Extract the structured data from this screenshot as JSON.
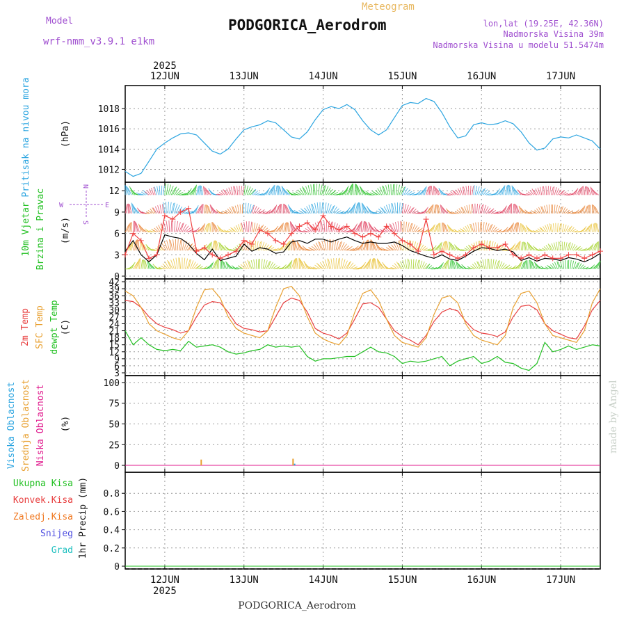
{
  "header": {
    "model_label": "Model",
    "model_name": "wrf-nmm_v3.9.1 e1km",
    "product": "Meteogram",
    "station": "PODGORICA_Aerodrom",
    "lonlat": "lon,lat (19.25E, 42.36N)",
    "elevation": "Nadmorska Visina 39m",
    "model_elevation": "Nadmorska Visina u modelu 51.5474m"
  },
  "footer": {
    "station": "PODGORICA_Aerodrom",
    "watermark": "made by Angel"
  },
  "colors": {
    "pressure": "#2aa4e0",
    "t2m": "#e84040",
    "sfc": "#e8a030",
    "dewpt": "#22c022",
    "high_cloud": "#2aa4e0",
    "mid_cloud": "#e8a030",
    "low_cloud": "#e0188c",
    "total_precip": "#22c022",
    "conv_precip": "#e84040",
    "grid_precip": "#f07820",
    "snow": "#5050e0",
    "graupel": "#20c0c0",
    "wind_mean": "#000000",
    "gust": "#f04040"
  },
  "chart_data": {
    "type": "line",
    "x_unit": "days, June 2025",
    "year_label": "2025",
    "x_range": [
      11.5,
      17.5
    ],
    "days": [
      {
        "label": "12JUN",
        "x": 12
      },
      {
        "label": "13JUN",
        "x": 13
      },
      {
        "label": "14JUN",
        "x": 14
      },
      {
        "label": "15JUN",
        "x": 15
      },
      {
        "label": "16JUN",
        "x": 16
      },
      {
        "label": "17JUN",
        "x": 17
      }
    ],
    "panels": [
      {
        "id": "pressure",
        "ylabel": "Pritisak na nivou mora",
        "unit": "(hPa)",
        "ylim": [
          1011,
          1020
        ],
        "yticks": [
          1012,
          1014,
          1016,
          1018
        ],
        "series": [
          {
            "key": "pressure",
            "x": [
              11.5,
              11.6,
              11.7,
              11.8,
              11.9,
              12.0,
              12.1,
              12.2,
              12.3,
              12.4,
              12.5,
              12.6,
              12.7,
              12.8,
              12.9,
              13.0,
              13.1,
              13.2,
              13.3,
              13.4,
              13.5,
              13.6,
              13.7,
              13.8,
              13.9,
              14.0,
              14.1,
              14.2,
              14.3,
              14.4,
              14.5,
              14.6,
              14.7,
              14.8,
              14.9,
              15.0,
              15.1,
              15.2,
              15.3,
              15.4,
              15.5,
              15.6,
              15.7,
              15.8,
              15.9,
              16.0,
              16.1,
              16.2,
              16.3,
              16.4,
              16.5,
              16.6,
              16.7,
              16.8,
              16.9,
              17.0,
              17.1,
              17.2,
              17.3,
              17.4,
              17.5
            ],
            "y": [
              1011.8,
              1011.3,
              1011.6,
              1012.8,
              1014.0,
              1014.6,
              1015.1,
              1015.5,
              1015.6,
              1015.4,
              1014.6,
              1013.8,
              1013.5,
              1014.0,
              1015.0,
              1015.9,
              1016.2,
              1016.4,
              1016.8,
              1016.6,
              1015.9,
              1015.2,
              1015.0,
              1015.7,
              1016.9,
              1017.9,
              1018.2,
              1018.0,
              1018.4,
              1017.9,
              1016.8,
              1015.9,
              1015.4,
              1015.9,
              1017.1,
              1018.3,
              1018.6,
              1018.5,
              1019.0,
              1018.7,
              1017.6,
              1016.2,
              1015.1,
              1015.3,
              1016.4,
              1016.6,
              1016.4,
              1016.5,
              1016.8,
              1016.5,
              1015.7,
              1014.6,
              1013.9,
              1014.1,
              1015.0,
              1015.2,
              1015.1,
              1015.4,
              1015.1,
              1014.8,
              1014.0
            ]
          }
        ]
      },
      {
        "id": "wind",
        "ylabel": "10m Vjetar Brzina i Pravac",
        "unit": "(m/s)",
        "direction_key": [
          "N",
          "E",
          "W",
          "S"
        ],
        "ylim": [
          0,
          12.8
        ],
        "yticks": [
          0,
          3,
          6,
          9,
          12
        ],
        "series": [
          {
            "key": "wind_mean",
            "x": [
              11.5,
              11.6,
              11.7,
              11.8,
              11.9,
              12.0,
              12.1,
              12.2,
              12.3,
              12.4,
              12.5,
              12.6,
              12.7,
              12.8,
              12.9,
              13.0,
              13.1,
              13.2,
              13.3,
              13.4,
              13.5,
              13.6,
              13.7,
              13.8,
              13.9,
              14.0,
              14.1,
              14.2,
              14.3,
              14.4,
              14.5,
              14.6,
              14.7,
              14.8,
              14.9,
              15.0,
              15.1,
              15.2,
              15.3,
              15.4,
              15.5,
              15.6,
              15.7,
              15.8,
              15.9,
              16.0,
              16.1,
              16.2,
              16.3,
              16.4,
              16.5,
              16.6,
              16.7,
              16.8,
              16.9,
              17.0,
              17.1,
              17.2,
              17.3,
              17.4,
              17.5
            ],
            "y": [
              3.5,
              5.0,
              3.0,
              2.0,
              3.0,
              5.8,
              5.5,
              5.3,
              4.5,
              3.2,
              2.3,
              3.8,
              2.2,
              2.5,
              2.8,
              4.5,
              3.5,
              4.0,
              3.8,
              3.2,
              3.4,
              4.8,
              5.0,
              4.6,
              5.2,
              5.2,
              4.8,
              5.2,
              5.5,
              5.0,
              4.6,
              4.8,
              4.6,
              4.6,
              4.8,
              4.3,
              3.6,
              3.2,
              2.8,
              2.5,
              3.0,
              2.4,
              2.2,
              2.8,
              3.5,
              4.0,
              3.9,
              3.6,
              3.8,
              3.4,
              2.2,
              2.6,
              2.1,
              2.5,
              2.4,
              2.2,
              2.6,
              2.4,
              2.0,
              2.5,
              3.2
            ]
          },
          {
            "key": "gust",
            "x": [
              11.5,
              11.6,
              11.7,
              11.8,
              11.9,
              12.0,
              12.1,
              12.2,
              12.3,
              12.4,
              12.5,
              12.6,
              12.7,
              12.8,
              12.9,
              13.0,
              13.1,
              13.2,
              13.3,
              13.4,
              13.5,
              13.6,
              13.7,
              13.8,
              13.9,
              14.0,
              14.1,
              14.2,
              14.3,
              14.4,
              14.5,
              14.6,
              14.7,
              14.8,
              14.9,
              15.0,
              15.1,
              15.2,
              15.3,
              15.4,
              15.5,
              15.6,
              15.7,
              15.8,
              15.9,
              16.0,
              16.1,
              16.2,
              16.3,
              16.4,
              16.5,
              16.6,
              16.7,
              16.8,
              16.9,
              17.0,
              17.1,
              17.2,
              17.3,
              17.4,
              17.5
            ],
            "y": [
              3.0,
              6.0,
              5.0,
              2.5,
              3.0,
              8.5,
              8.0,
              9.0,
              9.5,
              3.5,
              4.0,
              3.0,
              2.5,
              3.0,
              3.5,
              5.0,
              4.5,
              6.5,
              6.0,
              5.0,
              4.5,
              6.0,
              7.0,
              7.5,
              6.5,
              8.5,
              7.0,
              6.5,
              7.0,
              6.0,
              5.5,
              6.0,
              5.5,
              7.0,
              6.0,
              5.0,
              4.5,
              3.5,
              8.0,
              3.0,
              3.5,
              3.0,
              2.5,
              3.0,
              4.0,
              4.5,
              4.0,
              4.0,
              4.5,
              3.0,
              2.5,
              3.0,
              2.5,
              3.0,
              2.5,
              2.5,
              3.0,
              3.0,
              2.5,
              3.0,
              3.5
            ]
          }
        ]
      },
      {
        "id": "temperature",
        "ylabels": [
          "2m Temp",
          "SFC Temp",
          "dewpt Temp"
        ],
        "unit": "(C)",
        "ylim": [
          3,
          42
        ],
        "yticks": [
          3,
          6,
          9,
          12,
          15,
          18,
          21,
          24,
          27,
          30,
          33,
          36,
          39,
          42
        ],
        "series": [
          {
            "key": "t2m",
            "x": [
              11.5,
              11.6,
              11.7,
              11.8,
              11.9,
              12.0,
              12.1,
              12.2,
              12.3,
              12.4,
              12.5,
              12.6,
              12.7,
              12.8,
              12.9,
              13.0,
              13.1,
              13.2,
              13.3,
              13.4,
              13.5,
              13.6,
              13.7,
              13.8,
              13.9,
              14.0,
              14.1,
              14.2,
              14.3,
              14.4,
              14.5,
              14.6,
              14.7,
              14.8,
              14.9,
              15.0,
              15.1,
              15.2,
              15.3,
              15.4,
              15.5,
              15.6,
              15.7,
              15.8,
              15.9,
              16.0,
              16.1,
              16.2,
              16.3,
              16.4,
              16.5,
              16.6,
              16.7,
              16.8,
              16.9,
              17.0,
              17.1,
              17.2,
              17.3,
              17.4,
              17.5
            ],
            "y": [
              34,
              33.5,
              31,
              27,
              24,
              22.5,
              21.5,
              20,
              21,
              27,
              32,
              33.5,
              33,
              29,
              24,
              22,
              21.5,
              20.5,
              21,
              27,
              33,
              35,
              34,
              29,
              22,
              20,
              19,
              17.5,
              20,
              26,
              32.5,
              33,
              31,
              26,
              21,
              18.5,
              17,
              15,
              19,
              25,
              29,
              30.5,
              29.5,
              25,
              21.5,
              20,
              19.5,
              18.5,
              20.5,
              27,
              31.5,
              32,
              30,
              24,
              21,
              19.5,
              18,
              17.5,
              23,
              30,
              34
            ]
          },
          {
            "key": "sfc",
            "x": [
              11.5,
              11.6,
              11.7,
              11.8,
              11.9,
              12.0,
              12.1,
              12.2,
              12.3,
              12.4,
              12.5,
              12.6,
              12.7,
              12.8,
              12.9,
              13.0,
              13.1,
              13.2,
              13.3,
              13.4,
              13.5,
              13.6,
              13.7,
              13.8,
              13.9,
              14.0,
              14.1,
              14.2,
              14.3,
              14.4,
              14.5,
              14.6,
              14.7,
              14.8,
              14.9,
              15.0,
              15.1,
              15.2,
              15.3,
              15.4,
              15.5,
              15.6,
              15.7,
              15.8,
              15.9,
              16.0,
              16.1,
              16.2,
              16.3,
              16.4,
              16.5,
              16.6,
              16.7,
              16.8,
              16.9,
              17.0,
              17.1,
              17.2,
              17.3,
              17.4,
              17.5
            ],
            "y": [
              38,
              36,
              31,
              24,
              21,
              19.5,
              18,
              17,
              21,
              31,
              38.5,
              39,
              35,
              27,
              22,
              20,
              19,
              18,
              21,
              31,
              39,
              40,
              36,
              27,
              20,
              17.5,
              16,
              15,
              19,
              29,
              37,
              38.5,
              34,
              26,
              19,
              16,
              15,
              14,
              18,
              28,
              35,
              36,
              33,
              24,
              19,
              17,
              16,
              15,
              19,
              31,
              37,
              38,
              33,
              24,
              19,
              18,
              17,
              16,
              21,
              33,
              39
            ]
          },
          {
            "key": "dewpt",
            "x": [
              11.5,
              11.6,
              11.7,
              11.8,
              11.9,
              12.0,
              12.1,
              12.2,
              12.3,
              12.4,
              12.5,
              12.6,
              12.7,
              12.8,
              12.9,
              13.0,
              13.1,
              13.2,
              13.3,
              13.4,
              13.5,
              13.6,
              13.7,
              13.8,
              13.9,
              14.0,
              14.1,
              14.2,
              14.3,
              14.4,
              14.5,
              14.6,
              14.7,
              14.8,
              14.9,
              15.0,
              15.1,
              15.2,
              15.3,
              15.4,
              15.5,
              15.6,
              15.7,
              15.8,
              15.9,
              16.0,
              16.1,
              16.2,
              16.3,
              16.4,
              16.5,
              16.6,
              16.7,
              16.8,
              16.9,
              17.0,
              17.1,
              17.2,
              17.3,
              17.4,
              17.5
            ],
            "y": [
              21,
              15,
              18,
              15,
              13,
              12.5,
              13,
              12.5,
              16.5,
              14,
              14.5,
              15,
              14,
              12,
              11,
              11.5,
              12.5,
              13,
              15,
              14,
              14.5,
              14,
              14.5,
              10,
              8,
              9,
              9,
              9.5,
              10,
              10,
              12,
              14,
              12,
              11.5,
              10,
              7,
              8,
              7.5,
              8,
              9,
              10,
              6,
              8,
              9,
              10,
              7,
              8,
              10,
              7.5,
              7,
              5,
              4,
              7,
              16,
              12,
              13,
              14.5,
              13,
              14,
              15,
              14.5
            ]
          }
        ]
      },
      {
        "id": "clouds",
        "ylabels": [
          "Visoka Oblacnost",
          "Srednja Oblacnost",
          "Niska Oblacnost"
        ],
        "unit": "(%)",
        "ylim": [
          -5,
          105
        ],
        "yticks": [
          0,
          25,
          50,
          75,
          100
        ],
        "series": [
          {
            "key": "high_cloud",
            "x": [
              11.5,
              17.5
            ],
            "y": [
              0,
              0
            ]
          },
          {
            "key": "mid_cloud",
            "x": [
              11.5,
              17.5
            ],
            "y": [
              0,
              0
            ]
          },
          {
            "key": "low_cloud",
            "x": [
              11.5,
              17.5
            ],
            "y": [
              0,
              0
            ]
          }
        ],
        "bars": [
          {
            "key": "mid_cloud",
            "x": 12.46,
            "y": 7
          },
          {
            "key": "mid_cloud",
            "x": 13.62,
            "y": 8
          },
          {
            "key": "high_cloud",
            "x": 13.64,
            "y": 2
          }
        ]
      },
      {
        "id": "precip",
        "legend": [
          {
            "key": "total_precip",
            "label": "Ukupna Kisa"
          },
          {
            "key": "conv_precip",
            "label": "Konvek.Kisa"
          },
          {
            "key": "grid_precip",
            "label": "Zaledj.Kisa"
          },
          {
            "key": "snow",
            "label": "Snijeg"
          },
          {
            "key": "graupel",
            "label": "Grad"
          }
        ],
        "ylabel": "1hr Precip (mm)",
        "ylim": [
          0,
          1.0
        ],
        "yticks": [
          0,
          0.2,
          0.4,
          0.6,
          0.8
        ],
        "ytick_labels": [
          "0",
          "0.2",
          "0.4",
          "0.6",
          "0.8"
        ],
        "series": [
          {
            "key": "total_precip",
            "x": [
              11.5,
              17.5
            ],
            "y": [
              0,
              0
            ]
          }
        ]
      }
    ]
  }
}
